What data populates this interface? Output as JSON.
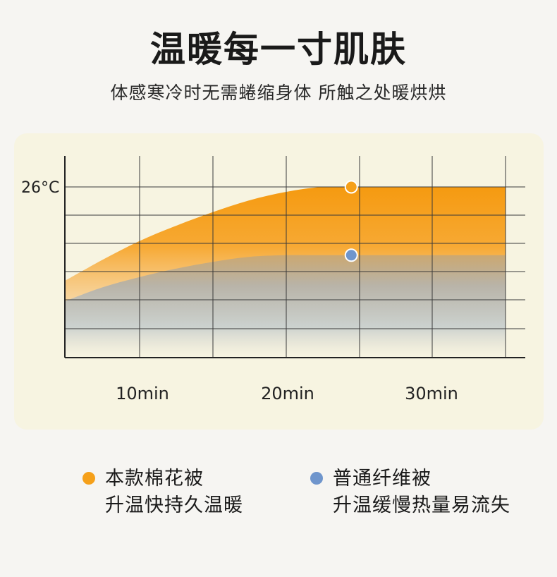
{
  "header": {
    "title": "温暖每一寸肌肤",
    "subtitle": "体感寒冷时无需蜷缩身体 所触之处暖烘烘"
  },
  "chart_data": {
    "type": "area",
    "title": "",
    "xlabel": "",
    "ylabel": "",
    "y_tick_label": "26°C",
    "x_tick_labels": [
      "10min",
      "20min",
      "30min"
    ],
    "x_ticks": [
      10,
      20,
      30
    ],
    "xlim": [
      0,
      30
    ],
    "grid": true,
    "series": [
      {
        "name": "本款棉花被",
        "color": "#f5a01a",
        "x": [
          0,
          2.5,
          5,
          7.5,
          10,
          12.5,
          15,
          17.5,
          20,
          25,
          30
        ],
        "values": [
          0.45,
          0.57,
          0.68,
          0.77,
          0.85,
          0.92,
          0.97,
          1.0,
          1.0,
          1.0,
          1.0
        ],
        "marker_x": 19.5
      },
      {
        "name": "普通纤维被",
        "color": "#6f95cc",
        "x": [
          0,
          2.5,
          5,
          7.5,
          10,
          12.5,
          15,
          17.5,
          20,
          25,
          30
        ],
        "values": [
          0.33,
          0.41,
          0.47,
          0.52,
          0.56,
          0.59,
          0.6,
          0.6,
          0.6,
          0.6,
          0.6
        ],
        "marker_x": 19.5
      }
    ]
  },
  "legend": {
    "items": [
      {
        "color": "#f5a01a",
        "line1": "本款棉花被",
        "line2": "升温快持久温暖"
      },
      {
        "color": "#6f95cc",
        "line1": "普通纤维被",
        "line2": "升温缓慢热量易流失"
      }
    ]
  }
}
